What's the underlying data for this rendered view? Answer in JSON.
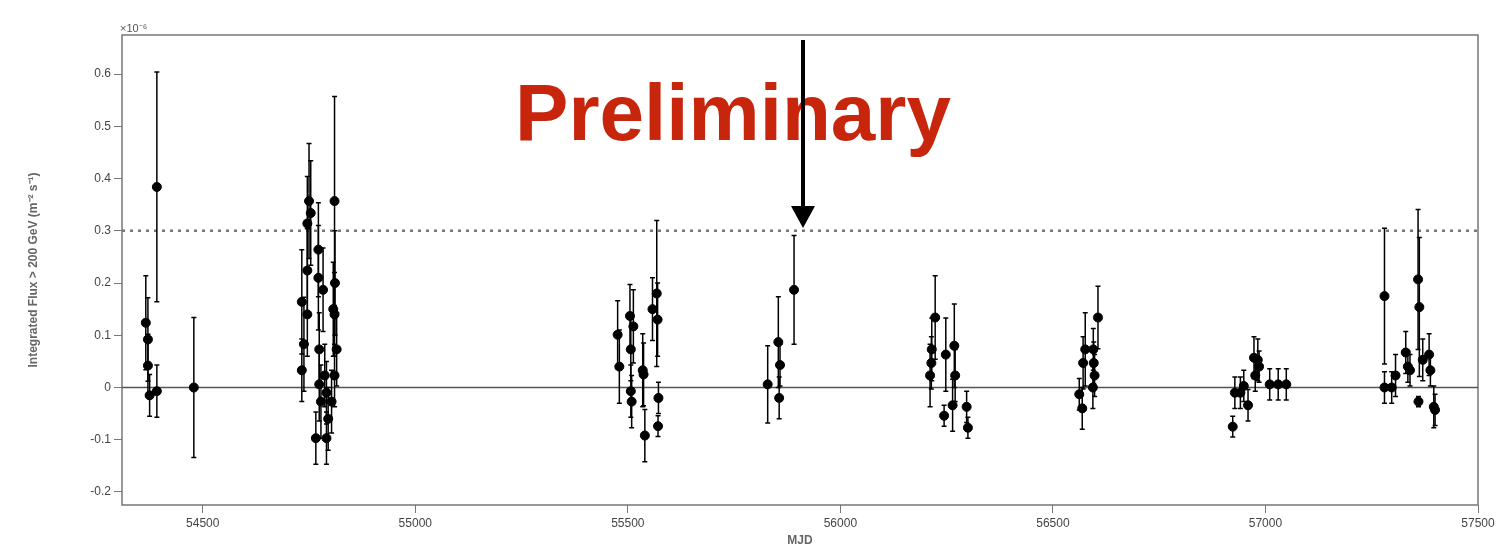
{
  "chart_data": {
    "type": "scatter",
    "xlabel": "MJD",
    "ylabel": "Integrated Flux > 200 GeV (m⁻² s⁻¹)",
    "annotations": [
      "Preliminary",
      "×10⁻⁶"
    ],
    "xlim": [
      54310,
      57500
    ],
    "xticks": [
      54500,
      55000,
      55500,
      56000,
      56500,
      57000,
      57500
    ],
    "ylim": [
      -0.225,
      0.675
    ],
    "yticks": [
      -0.2,
      -0.1,
      0,
      0.1,
      0.2,
      0.3,
      0.4,
      0.5,
      0.6
    ],
    "grid": false,
    "legend": false,
    "marker": "circle",
    "ref_lines": [
      {
        "axis": "y",
        "value": 0,
        "color": "#555555",
        "line_style": "solid"
      },
      {
        "axis": "y",
        "value": 0.3,
        "color": "#777777",
        "line_style": "dotted"
      }
    ],
    "series": [
      {
        "color": "#000000",
        "x": [
          54366,
          54371,
          54371,
          54375,
          54392,
          54392,
          54479,
          54750,
          54754,
          54746,
          54746,
          54733,
          54738,
          54733,
          54746,
          54772,
          54772,
          54783,
          54774,
          54787,
          54774,
          54791,
          54778,
          54795,
          54766,
          54791,
          54810,
          54811,
          54807,
          54810,
          54815,
          54810,
          54803,
          55476,
          55480,
          55505,
          55507,
          55507,
          55509,
          55513,
          55535,
          55540,
          55537,
          55558,
          55568,
          55570,
          55572,
          55571,
          55829,
          55854,
          55858,
          55856,
          55891,
          56211,
          56215,
          56214,
          56223,
          56244,
          56248,
          56264,
          56268,
          56270,
          56297,
          56300,
          56562,
          56569,
          56571,
          56576,
          56594,
          56596,
          56598,
          56595,
          56606,
          56923,
          56928,
          56941,
          56949,
          56959,
          56973,
          56982,
          56985,
          56976,
          57010,
          57030,
          57049,
          57280,
          57280,
          57297,
          57306,
          57330,
          57335,
          57340,
          57359,
          57362,
          57360,
          57370,
          57385,
          57388,
          57396,
          57399
        ],
        "values": [
          0.124,
          0.092,
          0.042,
          -0.015,
          0.384,
          -0.007,
          0,
          0.357,
          0.334,
          0.314,
          0.224,
          0.164,
          0.083,
          0.033,
          0.14,
          0.264,
          0.21,
          0.187,
          0.073,
          0.023,
          0.006,
          -0.01,
          -0.027,
          -0.06,
          -0.097,
          -0.097,
          0.357,
          0.2,
          0.15,
          0.14,
          0.073,
          0.023,
          -0.027,
          0.101,
          0.04,
          0.137,
          0.073,
          -0.007,
          -0.027,
          0.117,
          0.033,
          -0.092,
          0.025,
          0.15,
          0.18,
          0.13,
          -0.02,
          -0.074,
          0.006,
          0.087,
          0.043,
          -0.02,
          0.187,
          0.023,
          0.073,
          0.047,
          0.134,
          -0.054,
          0.063,
          -0.034,
          0.08,
          0.023,
          -0.037,
          -0.077,
          -0.013,
          -0.04,
          0.047,
          0.073,
          0,
          0.047,
          0.023,
          0.073,
          0.134,
          -0.075,
          -0.01,
          -0.01,
          0.003,
          -0.034,
          0.057,
          0.053,
          0.04,
          0.023,
          0.006,
          0.006,
          0.006,
          0.175,
          0,
          0,
          0.023,
          0.067,
          0.04,
          0.033,
          0.207,
          0.154,
          -0.027,
          0.053,
          0.063,
          0.033,
          -0.037,
          -0.043
        ],
        "errors": [
          0.09,
          0.08,
          0.06,
          0.04,
          0.22,
          0.05,
          0.134,
          0.11,
          0.1,
          0.09,
          0.08,
          0.1,
          0.09,
          0.06,
          0.08,
          0.09,
          0.1,
          0.08,
          0.07,
          0.06,
          0.07,
          0.06,
          0.07,
          0.06,
          0.05,
          0.05,
          0.2,
          0.1,
          0.09,
          0.08,
          0.07,
          0.06,
          0.06,
          0.065,
          0.07,
          0.06,
          0.06,
          0.05,
          0.05,
          0.07,
          0.07,
          0.05,
          0.06,
          0.06,
          0.14,
          0.07,
          0.03,
          0.02,
          0.074,
          0.087,
          0.04,
          0.04,
          0.104,
          0.06,
          0.06,
          0.05,
          0.08,
          0.02,
          0.07,
          0.05,
          0.08,
          0.05,
          0.03,
          0.02,
          0.03,
          0.04,
          0.05,
          0.07,
          0.04,
          0.04,
          0.04,
          0.04,
          0.06,
          0.02,
          0.03,
          0.03,
          0.03,
          0.03,
          0.04,
          0.04,
          0.03,
          0.03,
          0.03,
          0.03,
          0.03,
          0.13,
          0.03,
          0.03,
          0.04,
          0.04,
          0.03,
          0.03,
          0.134,
          0.133,
          0.01,
          0.04,
          0.04,
          0.03,
          0.04,
          0.03
        ]
      }
    ]
  }
}
